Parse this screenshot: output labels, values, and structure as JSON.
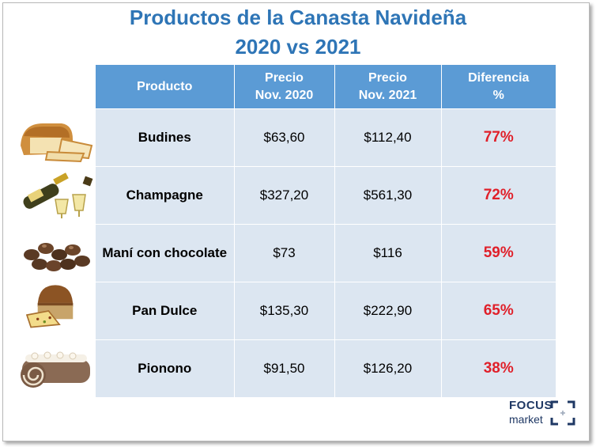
{
  "title": {
    "line1": "Productos de la Canasta Navideña",
    "line2": "2020 vs 2021"
  },
  "table": {
    "headers": [
      {
        "top": "Producto",
        "bottom": ""
      },
      {
        "top": "Precio",
        "bottom": "Nov. 2020"
      },
      {
        "top": "Precio",
        "bottom": "Nov. 2021"
      },
      {
        "top": "Diferencia",
        "bottom": "%"
      }
    ],
    "rows": [
      {
        "product": "Budines",
        "price_2020": "$63,60",
        "price_2021": "$112,40",
        "diff": "77%",
        "icon": "loaf-cake-icon"
      },
      {
        "product": "Champagne",
        "price_2020": "$327,20",
        "price_2021": "$561,30",
        "diff": "72%",
        "icon": "champagne-icon"
      },
      {
        "product": "Maní con chocolate",
        "price_2020": "$73",
        "price_2021": "$116",
        "diff": "59%",
        "icon": "chocolate-peanuts-icon"
      },
      {
        "product": "Pan Dulce",
        "price_2020": "$135,30",
        "price_2021": "$222,90",
        "diff": "65%",
        "icon": "panettone-icon"
      },
      {
        "product": "Pionono",
        "price_2020": "$91,50",
        "price_2021": "$126,20",
        "diff": "38%",
        "icon": "swiss-roll-icon"
      }
    ]
  },
  "logo": {
    "word1": "FOCUS",
    "word2": "market"
  },
  "colors": {
    "title": "#2e75b6",
    "header_bg": "#5b9bd5",
    "cell_bg": "#dce6f1",
    "diff_text": "#e0202a"
  }
}
